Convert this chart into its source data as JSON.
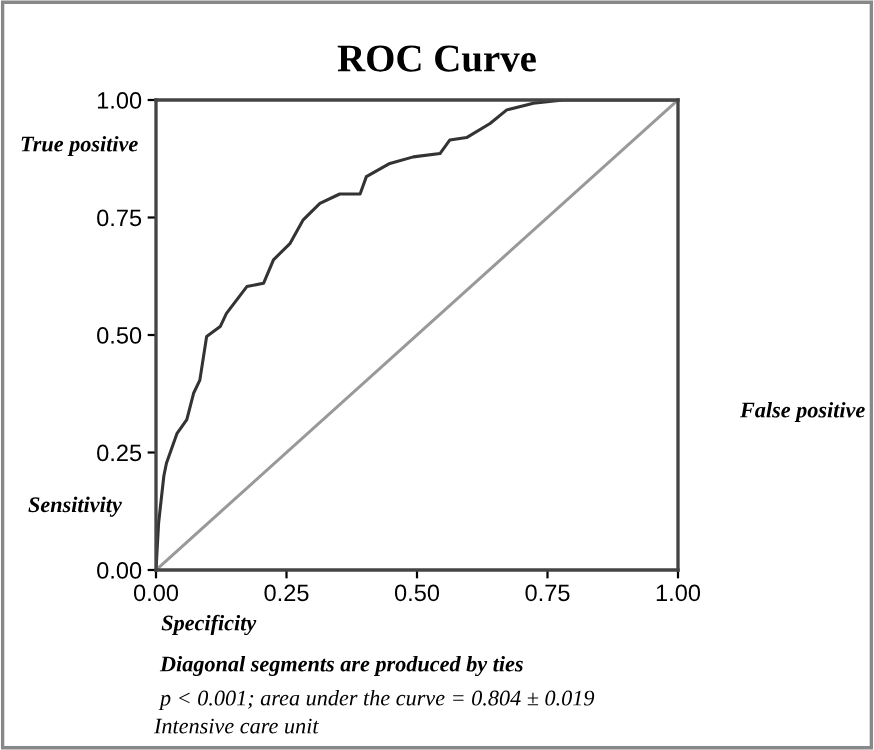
{
  "chart_data": {
    "type": "line",
    "title": "ROC Curve",
    "xlabel": "Specificity",
    "ylabel": "Sensitivity",
    "annotations": [
      "True positive",
      "False positive",
      "Diagonal segments are produced by ties",
      "p < 0.001; area under the curve = 0.804 ± 0.019",
      "Intensive care unit"
    ],
    "series": [
      {
        "color": "#333333",
        "x": [
          0,
          0.005,
          0.01,
          0.015,
          0.02,
          0.04,
          0.059,
          0.072,
          0.084,
          0.097,
          0.123,
          0.135,
          0.174,
          0.206,
          0.225,
          0.257,
          0.282,
          0.314,
          0.352,
          0.391,
          0.403,
          0.448,
          0.493,
          0.544,
          0.563,
          0.595,
          0.64,
          0.672,
          0.723,
          0.78,
          1.0
        ],
        "values": [
          0,
          0.1,
          0.15,
          0.2,
          0.227,
          0.29,
          0.32,
          0.376,
          0.404,
          0.497,
          0.518,
          0.546,
          0.603,
          0.61,
          0.66,
          0.695,
          0.745,
          0.78,
          0.8,
          0.8,
          0.837,
          0.865,
          0.879,
          0.886,
          0.915,
          0.92,
          0.95,
          0.979,
          0.993,
          1.0,
          1.0
        ]
      },
      {
        "color": "#999999",
        "x": [
          0,
          1
        ],
        "values": [
          0,
          1
        ]
      }
    ],
    "xlim": [
      0,
      1
    ],
    "ylim": [
      0,
      1
    ],
    "xticks": [
      {
        "value": 0,
        "label": "0.00"
      },
      {
        "value": 0.25,
        "label": "0.25"
      },
      {
        "value": 0.5,
        "label": "0.50"
      },
      {
        "value": 0.75,
        "label": "0.75"
      },
      {
        "value": 1,
        "label": "1.00"
      }
    ],
    "yticks": [
      {
        "value": 0,
        "label": "0.00"
      },
      {
        "value": 0.25,
        "label": "0.25"
      },
      {
        "value": 0.5,
        "label": "0.50"
      },
      {
        "value": 0.75,
        "label": "0.75"
      },
      {
        "value": 1,
        "label": "1.00"
      }
    ],
    "grid": false,
    "legend": false,
    "marker": "none",
    "line_style": "solid"
  }
}
